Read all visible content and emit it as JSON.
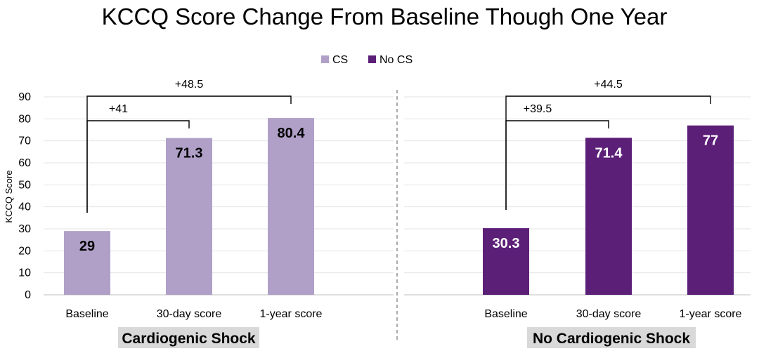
{
  "chart_data": {
    "type": "bar",
    "title": "KCCQ Score Change From Baseline Though One Year",
    "ylabel": "KCCQ Score",
    "ylim": [
      0,
      90
    ],
    "yticks": [
      0,
      10,
      20,
      30,
      40,
      50,
      60,
      70,
      80,
      90
    ],
    "grid": true,
    "legend_position": "top-center",
    "series": [
      {
        "name": "CS",
        "color": "#b0a0c8"
      },
      {
        "name": "No CS",
        "color": "#5c1f78"
      }
    ],
    "panels": [
      {
        "group_label": "Cardiogenic Shock",
        "series": "CS",
        "categories": [
          "Baseline",
          "30-day score",
          "1-year score"
        ],
        "values": [
          29,
          71.3,
          80.4
        ],
        "value_labels": [
          "29",
          "71.3",
          "80.4"
        ],
        "annotations": [
          {
            "label": "+41",
            "from": "Baseline",
            "to": "30-day score"
          },
          {
            "label": "+48.5",
            "from": "Baseline",
            "to": "1-year score"
          }
        ]
      },
      {
        "group_label": "No Cardiogenic Shock",
        "series": "No CS",
        "categories": [
          "Baseline",
          "30-day score",
          "1-year score"
        ],
        "values": [
          30.3,
          71.4,
          77
        ],
        "value_labels": [
          "30.3",
          "71.4",
          "77"
        ],
        "annotations": [
          {
            "label": "+39.5",
            "from": "Baseline",
            "to": "30-day score"
          },
          {
            "label": "+44.5",
            "from": "Baseline",
            "to": "1-year score"
          }
        ]
      }
    ]
  }
}
